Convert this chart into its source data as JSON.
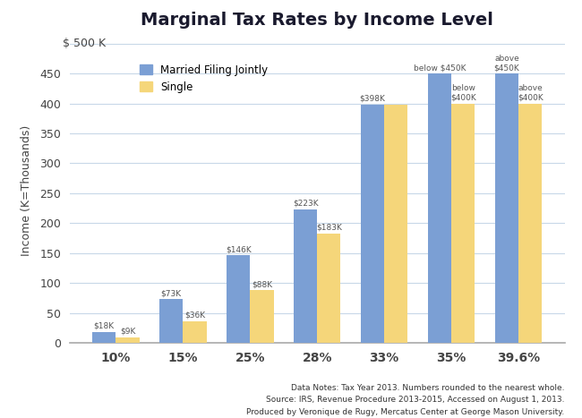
{
  "title": "Marginal Tax Rates by Income Level",
  "categories": [
    "10%",
    "15%",
    "25%",
    "28%",
    "33%",
    "35%",
    "39.6%"
  ],
  "married_values": [
    18,
    73,
    146,
    223,
    398,
    450,
    450
  ],
  "single_values": [
    9,
    36,
    88,
    183,
    398,
    400,
    400
  ],
  "married_labels": [
    "$18K",
    "$73K",
    "$146K",
    "$223K",
    "$398K",
    "below $450K",
    "above\n$450K"
  ],
  "single_labels": [
    "$9K",
    "$36K",
    "$88K",
    "$183K",
    "",
    "below\n$400K",
    "above\n$400K"
  ],
  "married_color": "#7b9fd4",
  "single_color": "#f5d67a",
  "ylabel": "Income (K=Thousands)",
  "ylim": [
    0,
    510
  ],
  "yticks": [
    0,
    50,
    100,
    150,
    200,
    250,
    300,
    350,
    400,
    450
  ],
  "y500_label": "$ 500 K",
  "legend_married": "Married Filing Jointly",
  "legend_single": "Single",
  "footer": "Data Notes: Tax Year 2013. Numbers rounded to the nearest whole.\nSource: IRS, Revenue Procedure 2013-2015, Accessed on August 1, 2013.\nProduced by Veronique de Rugy, Mercatus Center at George Mason University.",
  "background_color": "#ffffff",
  "grid_color": "#c8d8e8",
  "bar_width": 0.35,
  "title_color": "#1a1a2e",
  "label_color": "#555555",
  "tick_color": "#444444"
}
